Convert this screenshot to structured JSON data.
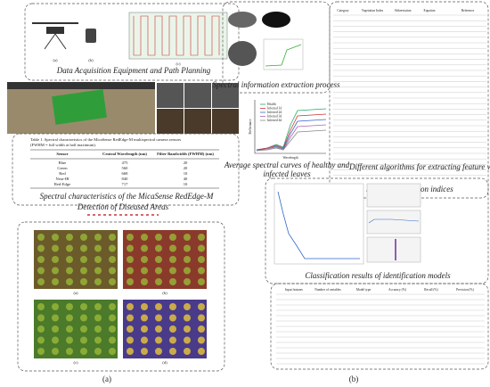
{
  "acquisition": {
    "title": "Data Acquisition Equipment and Path Planning",
    "labels": [
      "(a)",
      "(b)",
      "(c)"
    ]
  },
  "table1": {
    "caption": [
      "Table 1.  Spectral characteristics of the MicaSense RedEdge-M multispectral camera sensors",
      "(FWHM = full width at half maximum)."
    ],
    "headers": [
      "Sensor",
      "Central Wavelength (nm)",
      "Filter Bandwidth (FWHM) (nm)"
    ],
    "rows": [
      [
        "Blue",
        475,
        20
      ],
      [
        "Green",
        560,
        20
      ],
      [
        "Red",
        668,
        10
      ],
      [
        "Near-IR",
        840,
        40
      ],
      [
        "Red-Edge",
        717,
        10
      ]
    ]
  },
  "spectral_title": "Spectral characteristics of the MicaSense RedEdge-M",
  "detection": {
    "title": "Detection of Diseased Areas",
    "labels": [
      "(a)",
      "(b)",
      "(c)",
      "(d)"
    ]
  },
  "extraction": {
    "title": "Spectral information extraction process"
  },
  "curves": {
    "caption": [
      "Average spectral curves of healthy and",
      "infected leaves"
    ],
    "legend": [
      "Health",
      "Infected 1d",
      "Infected 2d",
      "Infected 3d",
      "Infected 4d"
    ],
    "x_label": "Wavelength",
    "y_label": "Reflectance"
  },
  "indices": {
    "title": "Spectral vegetation indices",
    "headers": [
      "Category",
      "Vegetation Index",
      "Abbreviation",
      "Equation",
      "Reference"
    ]
  },
  "algorithms": "Different algorithms for extracting feature wavelengths",
  "classification": {
    "title": "Classification results of identification models"
  },
  "results": {
    "headers": [
      "Input features",
      "Number of variables",
      "Model type",
      "Accuracy (%)",
      "Recall (%)",
      "Precision (%)"
    ]
  },
  "panels": [
    "(a)",
    "(b)"
  ]
}
